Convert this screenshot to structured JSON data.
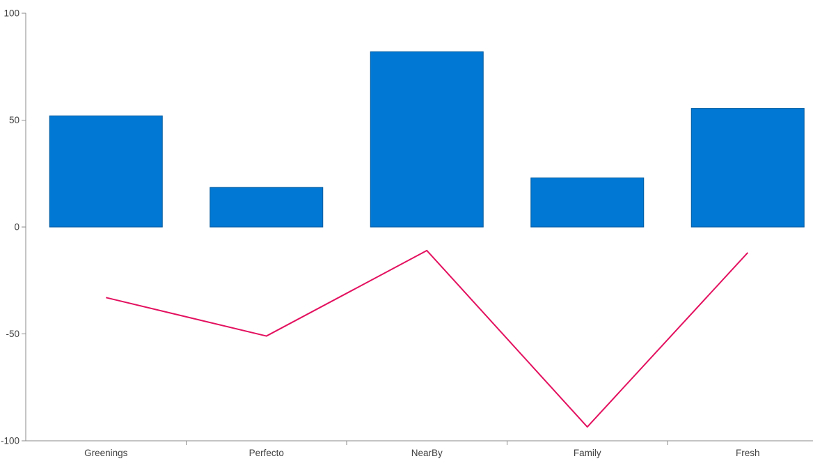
{
  "chart_data": {
    "type": "combo",
    "title": "",
    "xlabel": "",
    "ylabel": "",
    "categories": [
      "Greenings",
      "Perfecto",
      "NearBy",
      "Family",
      "Fresh"
    ],
    "series": [
      {
        "name": "bar-series",
        "type": "bar",
        "color": "#0078D4",
        "border_color": "#005A9E",
        "values": [
          52,
          18.5,
          82,
          23,
          55.5
        ]
      },
      {
        "name": "line-series",
        "type": "line",
        "color": "#E3115F",
        "stroke_width": 2,
        "values": [
          -33,
          -51,
          -11,
          -93.5,
          -12
        ]
      }
    ],
    "ylim": [
      -100,
      100
    ],
    "yticks": [
      100,
      50,
      0,
      -50,
      -100
    ],
    "grid": false,
    "legend_position": "none",
    "axis_color": "#8A8A8A",
    "tick_label_color": "#404040",
    "background_color": "#FFFFFF"
  }
}
